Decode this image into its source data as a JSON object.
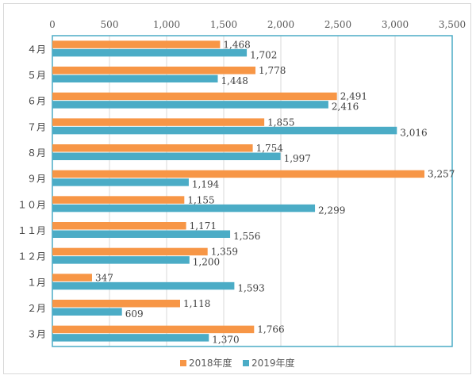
{
  "colors": {
    "series1": "#F79646",
    "series2": "#4BACC6",
    "plot_border": "#4BACC6",
    "grid": "#d9d9d9"
  },
  "chart_data": {
    "type": "bar",
    "orientation": "horizontal",
    "title": "",
    "xlabel": "",
    "ylabel": "",
    "xlim": [
      0,
      3500
    ],
    "xticks": [
      0,
      500,
      1000,
      1500,
      2000,
      2500,
      3000,
      3500
    ],
    "xtick_labels": [
      "0",
      "500",
      "1,000",
      "1,500",
      "2,000",
      "2,500",
      "3,000",
      "3,500"
    ],
    "x_axis_position": "top",
    "grid": true,
    "legend_position": "bottom",
    "categories": [
      "４月",
      "５月",
      "６月",
      "７月",
      "８月",
      "９月",
      "１０月",
      "１１月",
      "１２月",
      "１月",
      "２月",
      "３月"
    ],
    "series": [
      {
        "name": "2018年度",
        "values": [
          1468,
          1778,
          2491,
          1855,
          1754,
          3257,
          1155,
          1171,
          1359,
          347,
          1118,
          1766
        ],
        "labels": [
          "1,468",
          "1,778",
          "2,491",
          "1,855",
          "1,754",
          "3,257",
          "1,155",
          "1,171",
          "1,359",
          "347",
          "1,118",
          "1,766"
        ]
      },
      {
        "name": "2019年度",
        "values": [
          1702,
          1448,
          2416,
          3016,
          1997,
          1194,
          2299,
          1556,
          1200,
          1593,
          609,
          1370
        ],
        "labels": [
          "1,702",
          "1,448",
          "2,416",
          "3,016",
          "1,997",
          "1,194",
          "2,299",
          "1,556",
          "1,200",
          "1,593",
          "609",
          "1,370"
        ]
      }
    ]
  }
}
